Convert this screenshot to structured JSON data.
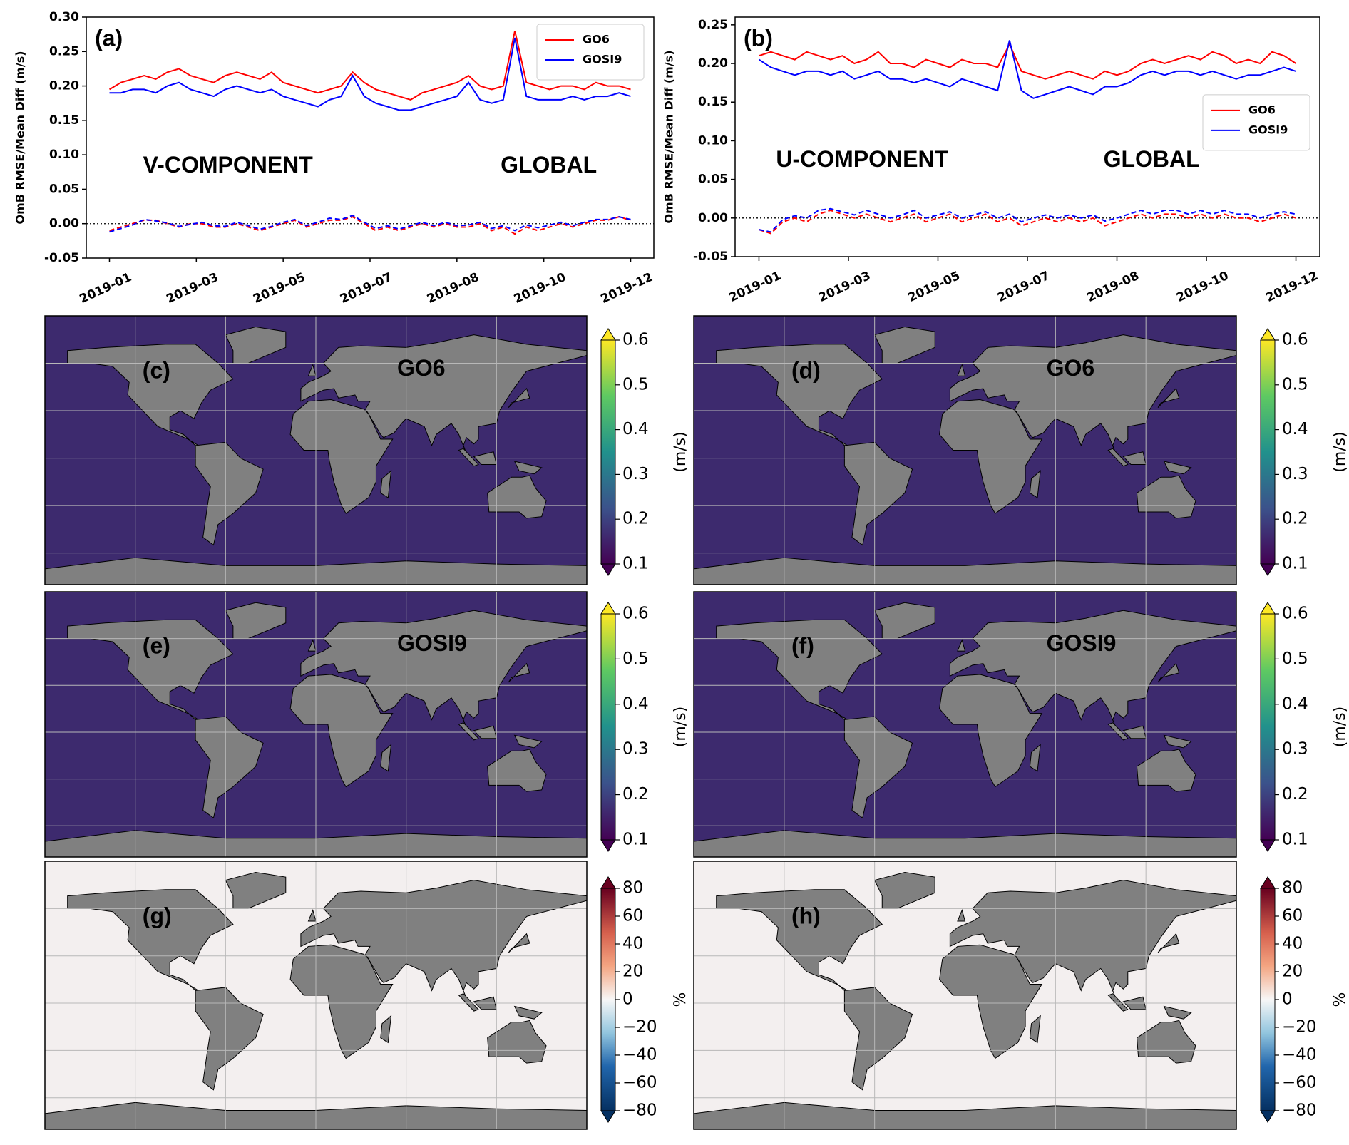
{
  "chart_data": [
    {
      "type": "line",
      "panel_label": "(a)",
      "annotations": [
        "V-COMPONENT",
        "GLOBAL"
      ],
      "ylabel": "OmB RMSE/Mean Diff (m/s)",
      "legend": "upper right",
      "x": [
        0,
        8,
        16,
        24,
        32,
        40,
        48,
        56,
        64,
        72,
        80,
        88,
        96,
        104,
        112,
        120,
        128,
        136,
        144,
        152,
        160,
        168,
        176,
        184,
        192,
        200,
        208,
        216,
        224,
        232,
        240,
        248,
        256,
        264,
        272,
        280,
        288,
        296,
        304,
        312,
        320,
        328,
        336,
        344,
        352,
        360
      ],
      "xlim": [
        -16,
        376
      ],
      "xticks": [
        {
          "value": 0,
          "label": "2019-01"
        },
        {
          "value": 60,
          "label": "2019-03"
        },
        {
          "value": 120,
          "label": "2019-05"
        },
        {
          "value": 180,
          "label": "2019-07"
        },
        {
          "value": 240,
          "label": "2019-08"
        },
        {
          "value": 300,
          "label": "2019-10"
        },
        {
          "value": 360,
          "label": "2019-12"
        }
      ],
      "ylim": [
        -0.05,
        0.3
      ],
      "yticks": [
        {
          "value": -0.05,
          "label": "-0.05"
        },
        {
          "value": 0,
          "label": "0.00"
        },
        {
          "value": 0.05,
          "label": "0.05"
        },
        {
          "value": 0.1,
          "label": "0.10"
        },
        {
          "value": 0.15,
          "label": "0.15"
        },
        {
          "value": 0.2,
          "label": "0.20"
        },
        {
          "value": 0.25,
          "label": "0.25"
        },
        {
          "value": 0.3,
          "label": "0.30"
        }
      ],
      "series": [
        {
          "name": "GO6",
          "color": "#ff0000",
          "values": [
            0.195,
            0.205,
            0.21,
            0.215,
            0.21,
            0.22,
            0.225,
            0.215,
            0.21,
            0.205,
            0.215,
            0.22,
            0.215,
            0.21,
            0.22,
            0.205,
            0.2,
            0.195,
            0.19,
            0.195,
            0.2,
            0.22,
            0.205,
            0.195,
            0.19,
            0.185,
            0.18,
            0.19,
            0.195,
            0.2,
            0.205,
            0.215,
            0.2,
            0.195,
            0.2,
            0.28,
            0.205,
            0.2,
            0.195,
            0.2,
            0.2,
            0.195,
            0.205,
            0.2,
            0.2,
            0.195
          ],
          "mean_diff": [
            -0.01,
            -0.005,
            0,
            0.005,
            0.005,
            0,
            -0.005,
            0,
            0,
            -0.005,
            -0.005,
            0,
            -0.005,
            -0.01,
            -0.005,
            0,
            0.005,
            -0.005,
            0,
            0.005,
            0.005,
            0.01,
            0,
            -0.01,
            -0.005,
            -0.01,
            -0.005,
            0,
            -0.005,
            0,
            -0.005,
            -0.005,
            0,
            -0.01,
            -0.005,
            -0.015,
            -0.005,
            -0.01,
            -0.005,
            0,
            -0.005,
            0,
            0.005,
            0.005,
            0.01,
            0.005
          ]
        },
        {
          "name": "GOSI9",
          "color": "#0000ff",
          "values": [
            0.19,
            0.19,
            0.195,
            0.195,
            0.19,
            0.2,
            0.205,
            0.195,
            0.19,
            0.185,
            0.195,
            0.2,
            0.195,
            0.19,
            0.195,
            0.185,
            0.18,
            0.175,
            0.17,
            0.18,
            0.185,
            0.215,
            0.185,
            0.175,
            0.17,
            0.165,
            0.165,
            0.17,
            0.175,
            0.18,
            0.185,
            0.205,
            0.18,
            0.175,
            0.18,
            0.27,
            0.185,
            0.18,
            0.18,
            0.18,
            0.185,
            0.18,
            0.185,
            0.185,
            0.19,
            0.185
          ],
          "mean_diff": [
            -0.012,
            -0.007,
            -0.002,
            0.006,
            0.004,
            0.001,
            -0.004,
            -0.001,
            0.002,
            -0.003,
            -0.004,
            0.002,
            -0.003,
            -0.008,
            -0.004,
            0.002,
            0.006,
            -0.003,
            0.002,
            0.008,
            0.006,
            0.012,
            0.002,
            -0.007,
            -0.003,
            -0.008,
            -0.003,
            0.002,
            -0.003,
            0.002,
            -0.003,
            -0.002,
            0.002,
            -0.007,
            -0.003,
            -0.01,
            -0.002,
            -0.006,
            -0.002,
            0.002,
            -0.003,
            0.002,
            0.006,
            0.006,
            0.01,
            0.006
          ]
        }
      ]
    },
    {
      "type": "line",
      "panel_label": "(b)",
      "annotations": [
        "U-COMPONENT",
        "GLOBAL"
      ],
      "ylabel": "OmB RMSE/Mean Diff (m/s)",
      "legend": "center right",
      "x": [
        0,
        8,
        16,
        24,
        32,
        40,
        48,
        56,
        64,
        72,
        80,
        88,
        96,
        104,
        112,
        120,
        128,
        136,
        144,
        152,
        160,
        168,
        176,
        184,
        192,
        200,
        208,
        216,
        224,
        232,
        240,
        248,
        256,
        264,
        272,
        280,
        288,
        296,
        304,
        312,
        320,
        328,
        336,
        344,
        352,
        360
      ],
      "xlim": [
        -16,
        376
      ],
      "xticks": [
        {
          "value": 0,
          "label": "2019-01"
        },
        {
          "value": 60,
          "label": "2019-03"
        },
        {
          "value": 120,
          "label": "2019-05"
        },
        {
          "value": 180,
          "label": "2019-07"
        },
        {
          "value": 240,
          "label": "2019-08"
        },
        {
          "value": 300,
          "label": "2019-10"
        },
        {
          "value": 360,
          "label": "2019-12"
        }
      ],
      "ylim": [
        -0.05,
        0.26
      ],
      "yticks": [
        {
          "value": -0.05,
          "label": "-0.05"
        },
        {
          "value": 0,
          "label": "0.00"
        },
        {
          "value": 0.05,
          "label": "0.05"
        },
        {
          "value": 0.1,
          "label": "0.10"
        },
        {
          "value": 0.15,
          "label": "0.15"
        },
        {
          "value": 0.2,
          "label": "0.20"
        },
        {
          "value": 0.25,
          "label": "0.25"
        }
      ],
      "series": [
        {
          "name": "GO6",
          "color": "#ff0000",
          "values": [
            0.21,
            0.215,
            0.21,
            0.205,
            0.215,
            0.21,
            0.205,
            0.21,
            0.2,
            0.205,
            0.215,
            0.2,
            0.2,
            0.195,
            0.205,
            0.2,
            0.195,
            0.205,
            0.2,
            0.2,
            0.195,
            0.225,
            0.19,
            0.185,
            0.18,
            0.185,
            0.19,
            0.185,
            0.18,
            0.19,
            0.185,
            0.19,
            0.2,
            0.205,
            0.2,
            0.205,
            0.21,
            0.205,
            0.215,
            0.21,
            0.2,
            0.205,
            0.2,
            0.215,
            0.21,
            0.2
          ],
          "mean_diff": [
            -0.015,
            -0.02,
            -0.005,
            0,
            -0.005,
            0.005,
            0.01,
            0.005,
            0,
            0.005,
            0,
            -0.005,
            0,
            0.005,
            -0.005,
            0,
            0.005,
            -0.005,
            0,
            0.005,
            -0.005,
            0,
            -0.01,
            -0.005,
            0,
            -0.005,
            0,
            -0.005,
            0,
            -0.01,
            -0.005,
            0,
            0.005,
            0,
            0.005,
            0.005,
            0,
            0.005,
            0,
            0.005,
            0,
            0,
            -0.005,
            0,
            0.005,
            0
          ]
        },
        {
          "name": "GOSI9",
          "color": "#0000ff",
          "values": [
            0.205,
            0.195,
            0.19,
            0.185,
            0.19,
            0.19,
            0.185,
            0.19,
            0.18,
            0.185,
            0.19,
            0.18,
            0.18,
            0.175,
            0.18,
            0.175,
            0.17,
            0.18,
            0.175,
            0.17,
            0.165,
            0.23,
            0.165,
            0.155,
            0.16,
            0.165,
            0.17,
            0.165,
            0.16,
            0.17,
            0.17,
            0.175,
            0.185,
            0.19,
            0.185,
            0.19,
            0.19,
            0.185,
            0.19,
            0.185,
            0.18,
            0.185,
            0.185,
            0.19,
            0.195,
            0.19
          ],
          "mean_diff": [
            -0.015,
            -0.018,
            -0.002,
            0.003,
            0,
            0.01,
            0.012,
            0.008,
            0.004,
            0.01,
            0.005,
            0,
            0.004,
            0.01,
            0,
            0.004,
            0.008,
            0,
            0.004,
            0.008,
            0,
            0.005,
            -0.005,
            0,
            0.004,
            0,
            0.004,
            0,
            0.004,
            -0.004,
            0,
            0.005,
            0.01,
            0.005,
            0.01,
            0.01,
            0.005,
            0.01,
            0.005,
            0.01,
            0.005,
            0.005,
            0,
            0.005,
            0.008,
            0.005
          ]
        }
      ]
    },
    {
      "type": "map",
      "panel_label": "(c)",
      "title": "GO6",
      "colorbar": {
        "label": "(m/s)",
        "colormap": "viridis",
        "lim": [
          0.1,
          0.6
        ],
        "ticks": [
          0.1,
          0.2,
          0.3,
          0.4,
          0.5,
          0.6
        ]
      }
    },
    {
      "type": "map",
      "panel_label": "(d)",
      "title": "GO6",
      "colorbar": {
        "label": "(m/s)",
        "colormap": "viridis",
        "lim": [
          0.1,
          0.6
        ],
        "ticks": [
          0.1,
          0.2,
          0.3,
          0.4,
          0.5,
          0.6
        ]
      }
    },
    {
      "type": "map",
      "panel_label": "(e)",
      "title": "GOSI9",
      "colorbar": {
        "label": "(m/s)",
        "colormap": "viridis",
        "lim": [
          0.1,
          0.6
        ],
        "ticks": [
          0.1,
          0.2,
          0.3,
          0.4,
          0.5,
          0.6
        ]
      }
    },
    {
      "type": "map",
      "panel_label": "(f)",
      "title": "GOSI9",
      "colorbar": {
        "label": "(m/s)",
        "colormap": "viridis",
        "lim": [
          0.1,
          0.6
        ],
        "ticks": [
          0.1,
          0.2,
          0.3,
          0.4,
          0.5,
          0.6
        ]
      }
    },
    {
      "type": "map",
      "panel_label": "(g)",
      "colorbar": {
        "label": "%",
        "colormap": "RdBu_r",
        "lim": [
          -80,
          80
        ],
        "ticks": [
          {
            "value": -80,
            "label": "−80"
          },
          {
            "value": -60,
            "label": "−60"
          },
          {
            "value": -40,
            "label": "−40"
          },
          {
            "value": -20,
            "label": "−20"
          },
          0,
          20,
          40,
          60,
          80
        ]
      }
    },
    {
      "type": "map",
      "panel_label": "(h)",
      "colorbar": {
        "label": "%",
        "colormap": "RdBu_r",
        "lim": [
          -80,
          80
        ],
        "ticks": [
          {
            "value": -80,
            "label": "−80"
          },
          {
            "value": -60,
            "label": "−60"
          },
          {
            "value": -40,
            "label": "−40"
          },
          {
            "value": -20,
            "label": "−20"
          },
          0,
          20,
          40,
          60,
          80
        ]
      }
    }
  ]
}
